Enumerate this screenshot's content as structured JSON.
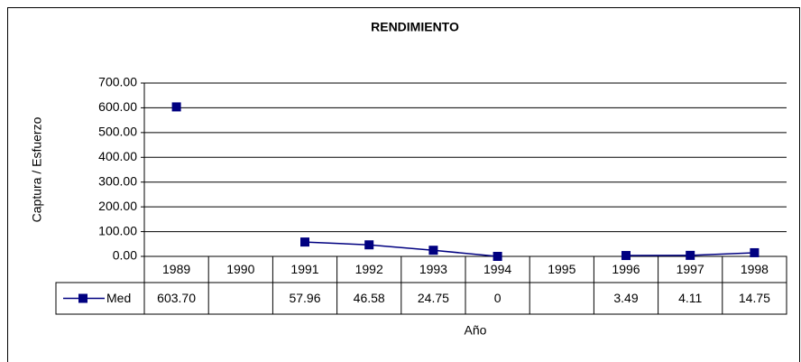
{
  "chart_data": {
    "type": "line",
    "title": "RENDIMIENTO",
    "x_label": "Año",
    "y_label": "Captura / Esfuerzo",
    "categories": [
      "1989",
      "1990",
      "1991",
      "1992",
      "1993",
      "1994",
      "1995",
      "1996",
      "1997",
      "1998"
    ],
    "series": [
      {
        "name": "Med",
        "color": "#000080",
        "values": [
          603.7,
          null,
          57.96,
          46.58,
          24.75,
          0,
          null,
          3.49,
          4.11,
          14.75
        ],
        "value_labels": [
          "603.70",
          null,
          "57.96",
          "46.58",
          "24.75",
          "0",
          null,
          "3.49",
          "4.11",
          "14.75"
        ]
      }
    ],
    "ylim": [
      0,
      700
    ],
    "yticks": [
      {
        "value": 0,
        "label": "0.00"
      },
      {
        "value": 100,
        "label": "100.00"
      },
      {
        "value": 200,
        "label": "200.00"
      },
      {
        "value": 300,
        "label": "300.00"
      },
      {
        "value": 400,
        "label": "400.00"
      },
      {
        "value": 500,
        "label": "500.00"
      },
      {
        "value": 600,
        "label": "600.00"
      },
      {
        "value": 700,
        "label": "700.00"
      }
    ],
    "grid": true
  }
}
